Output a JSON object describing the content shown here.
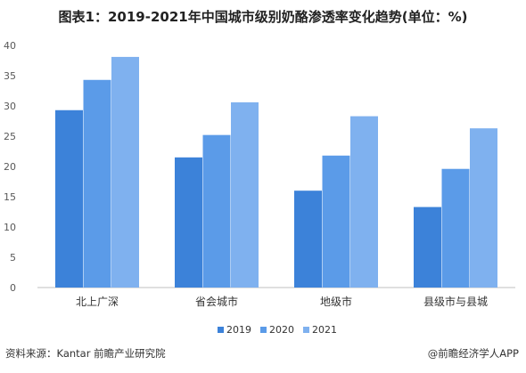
{
  "title": "图表1：2019-2021年中国城市级别奶酪渗透率变化趋势(单位：%)",
  "footer": {
    "source": "资料来源：Kantar 前瞻产业研究院",
    "brand": "@前瞻经济学人APP"
  },
  "colors": {
    "2019": "#3c82d9",
    "2020": "#5b9be8",
    "2021": "#7fb1ef"
  },
  "chart_data": {
    "type": "bar",
    "title": "图表1：2019-2021年中国城市级别奶酪渗透率变化趋势(单位：%)",
    "categories": [
      "北上广深",
      "省会城市",
      "地级市",
      "县级市与县城"
    ],
    "series": [
      {
        "name": "2019",
        "values": [
          29.3,
          21.5,
          16.0,
          13.3
        ]
      },
      {
        "name": "2020",
        "values": [
          34.3,
          25.2,
          21.8,
          19.6
        ]
      },
      {
        "name": "2021",
        "values": [
          38.1,
          30.6,
          28.3,
          26.3
        ]
      }
    ],
    "ylim": [
      0,
      40
    ],
    "yticks": [
      0,
      5,
      10,
      15,
      20,
      25,
      30,
      35,
      40
    ],
    "grid": false,
    "legend": "bottom"
  }
}
